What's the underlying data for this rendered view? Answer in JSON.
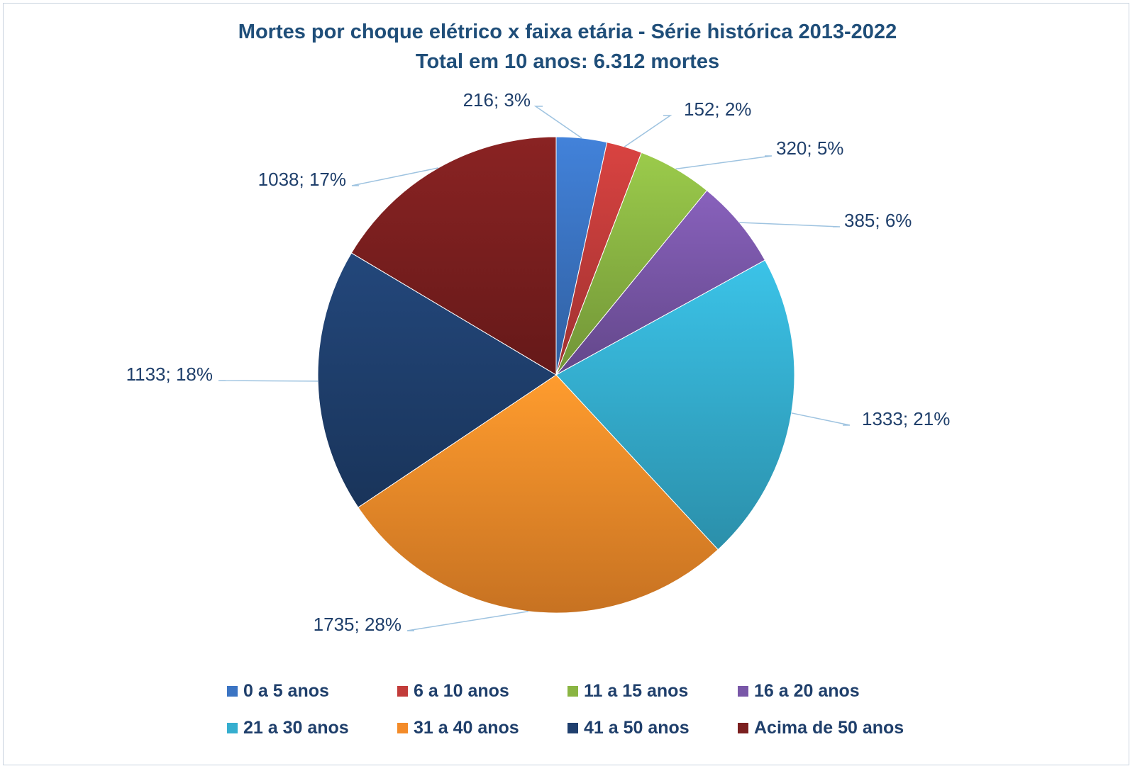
{
  "chart_data": {
    "type": "pie",
    "title": "Mortes por choque elétrico x faixa etária - Série histórica 2013-2022",
    "subtitle": "Total em 10 anos: 6.312 mortes",
    "legend_position": "bottom",
    "series": [
      {
        "label": "0 a 5 anos",
        "value": 216,
        "percent_label": "216; 3%",
        "color": "#3b74c3"
      },
      {
        "label": "6 a 10 anos",
        "value": 152,
        "percent_label": "152; 2%",
        "color": "#c23c3a"
      },
      {
        "label": "11 a 15 anos",
        "value": 320,
        "percent_label": "320; 5%",
        "color": "#8ab543"
      },
      {
        "label": "16 a 20 anos",
        "value": 385,
        "percent_label": "385; 6%",
        "color": "#7957a8"
      },
      {
        "label": "21 a 30 anos",
        "value": 1333,
        "percent_label": "1333; 21%",
        "color": "#35aecf"
      },
      {
        "label": "31 a 40 anos",
        "value": 1735,
        "percent_label": "1735; 28%",
        "color": "#f38b29"
      },
      {
        "label": "41 a 50 anos",
        "value": 1133,
        "percent_label": "1133; 18%",
        "color": "#1f3f6e"
      },
      {
        "label": "Acima de 50 anos",
        "value": 1038,
        "percent_label": "1038; 17%",
        "color": "#7b1f1f"
      }
    ]
  }
}
